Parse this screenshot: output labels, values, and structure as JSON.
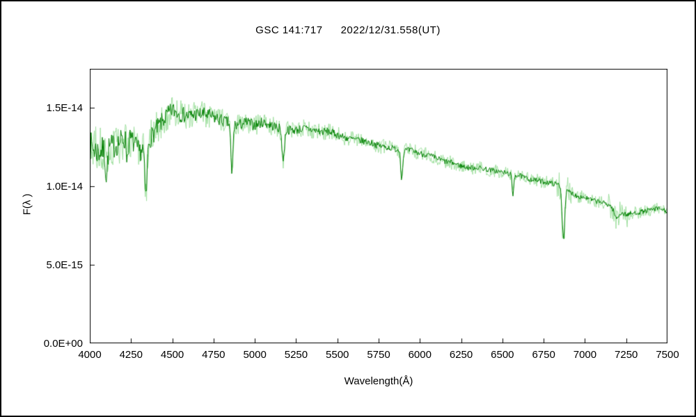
{
  "header": {
    "object_name": "GSC 141:717",
    "datetime": "2022/12/31.558(UT)"
  },
  "chart_data": {
    "type": "line",
    "title": "GSC 141:717    2022/12/31.558(UT)",
    "xlabel": "Wavelength(Å)",
    "ylabel": "F(λ )",
    "xlim": [
      4000,
      7500
    ],
    "ylim_e14": [
      0,
      1.75
    ],
    "grid": false,
    "legend": null,
    "x_ticks": [
      4000,
      4250,
      4500,
      4750,
      5000,
      5250,
      5500,
      5750,
      6000,
      6250,
      6500,
      6750,
      7000,
      7250,
      7500
    ],
    "y_ticks": [
      {
        "value_e14": 0.0,
        "label": "0.0E+00"
      },
      {
        "value_e14": 0.5,
        "label": "5.0E-15"
      },
      {
        "value_e14": 1.0,
        "label": "1.0E-14"
      },
      {
        "value_e14": 1.5,
        "label": "1.5E-14"
      }
    ],
    "series": [
      {
        "name": "raw-spectrum",
        "color": "#9fdf9f",
        "style": "noisy"
      },
      {
        "name": "smoothed-spectrum",
        "color": "#008000",
        "style": "line"
      }
    ],
    "colors": {
      "raw": "#9fdf9f",
      "smoothed": "#008000",
      "axis": "#000000"
    },
    "flux_scale": "1e-14",
    "x": [
      4000,
      4050,
      4100,
      4150,
      4200,
      4250,
      4300,
      4350,
      4400,
      4450,
      4500,
      4550,
      4600,
      4650,
      4700,
      4750,
      4800,
      4850,
      4900,
      4950,
      5000,
      5050,
      5100,
      5150,
      5200,
      5250,
      5300,
      5350,
      5400,
      5450,
      5500,
      5550,
      5600,
      5650,
      5700,
      5750,
      5800,
      5850,
      5900,
      5950,
      6000,
      6050,
      6100,
      6150,
      6200,
      6250,
      6300,
      6350,
      6400,
      6450,
      6500,
      6550,
      6600,
      6650,
      6700,
      6750,
      6800,
      6850,
      6900,
      6950,
      7000,
      7050,
      7100,
      7150,
      7200,
      7250,
      7300,
      7350,
      7400,
      7450,
      7500
    ],
    "flux_e14": [
      1.26,
      1.22,
      1.24,
      1.26,
      1.3,
      1.3,
      1.22,
      1.28,
      1.36,
      1.43,
      1.49,
      1.46,
      1.45,
      1.46,
      1.46,
      1.44,
      1.42,
      1.4,
      1.39,
      1.41,
      1.39,
      1.41,
      1.39,
      1.37,
      1.36,
      1.36,
      1.37,
      1.36,
      1.35,
      1.35,
      1.33,
      1.31,
      1.3,
      1.29,
      1.28,
      1.26,
      1.25,
      1.24,
      1.23,
      1.23,
      1.21,
      1.2,
      1.18,
      1.16,
      1.15,
      1.13,
      1.12,
      1.12,
      1.11,
      1.1,
      1.09,
      1.08,
      1.07,
      1.05,
      1.04,
      1.03,
      1.02,
      1.01,
      0.97,
      0.94,
      0.93,
      0.91,
      0.9,
      0.88,
      0.84,
      0.82,
      0.83,
      0.84,
      0.85,
      0.86,
      0.84
    ],
    "absorption_lines": [
      {
        "center": 4101,
        "depth_e14": 0.18,
        "sigma": 6
      },
      {
        "center": 4227,
        "depth_e14": 0.12,
        "sigma": 5
      },
      {
        "center": 4340,
        "depth_e14": 0.34,
        "sigma": 7
      },
      {
        "center": 4861,
        "depth_e14": 0.33,
        "sigma": 6
      },
      {
        "center": 5172,
        "depth_e14": 0.2,
        "sigma": 7
      },
      {
        "center": 5890,
        "depth_e14": 0.18,
        "sigma": 6
      },
      {
        "center": 6563,
        "depth_e14": 0.14,
        "sigma": 5
      },
      {
        "center": 6870,
        "depth_e14": 0.32,
        "sigma": 8
      },
      {
        "center": 7190,
        "depth_e14": 0.05,
        "sigma": 12
      }
    ]
  }
}
